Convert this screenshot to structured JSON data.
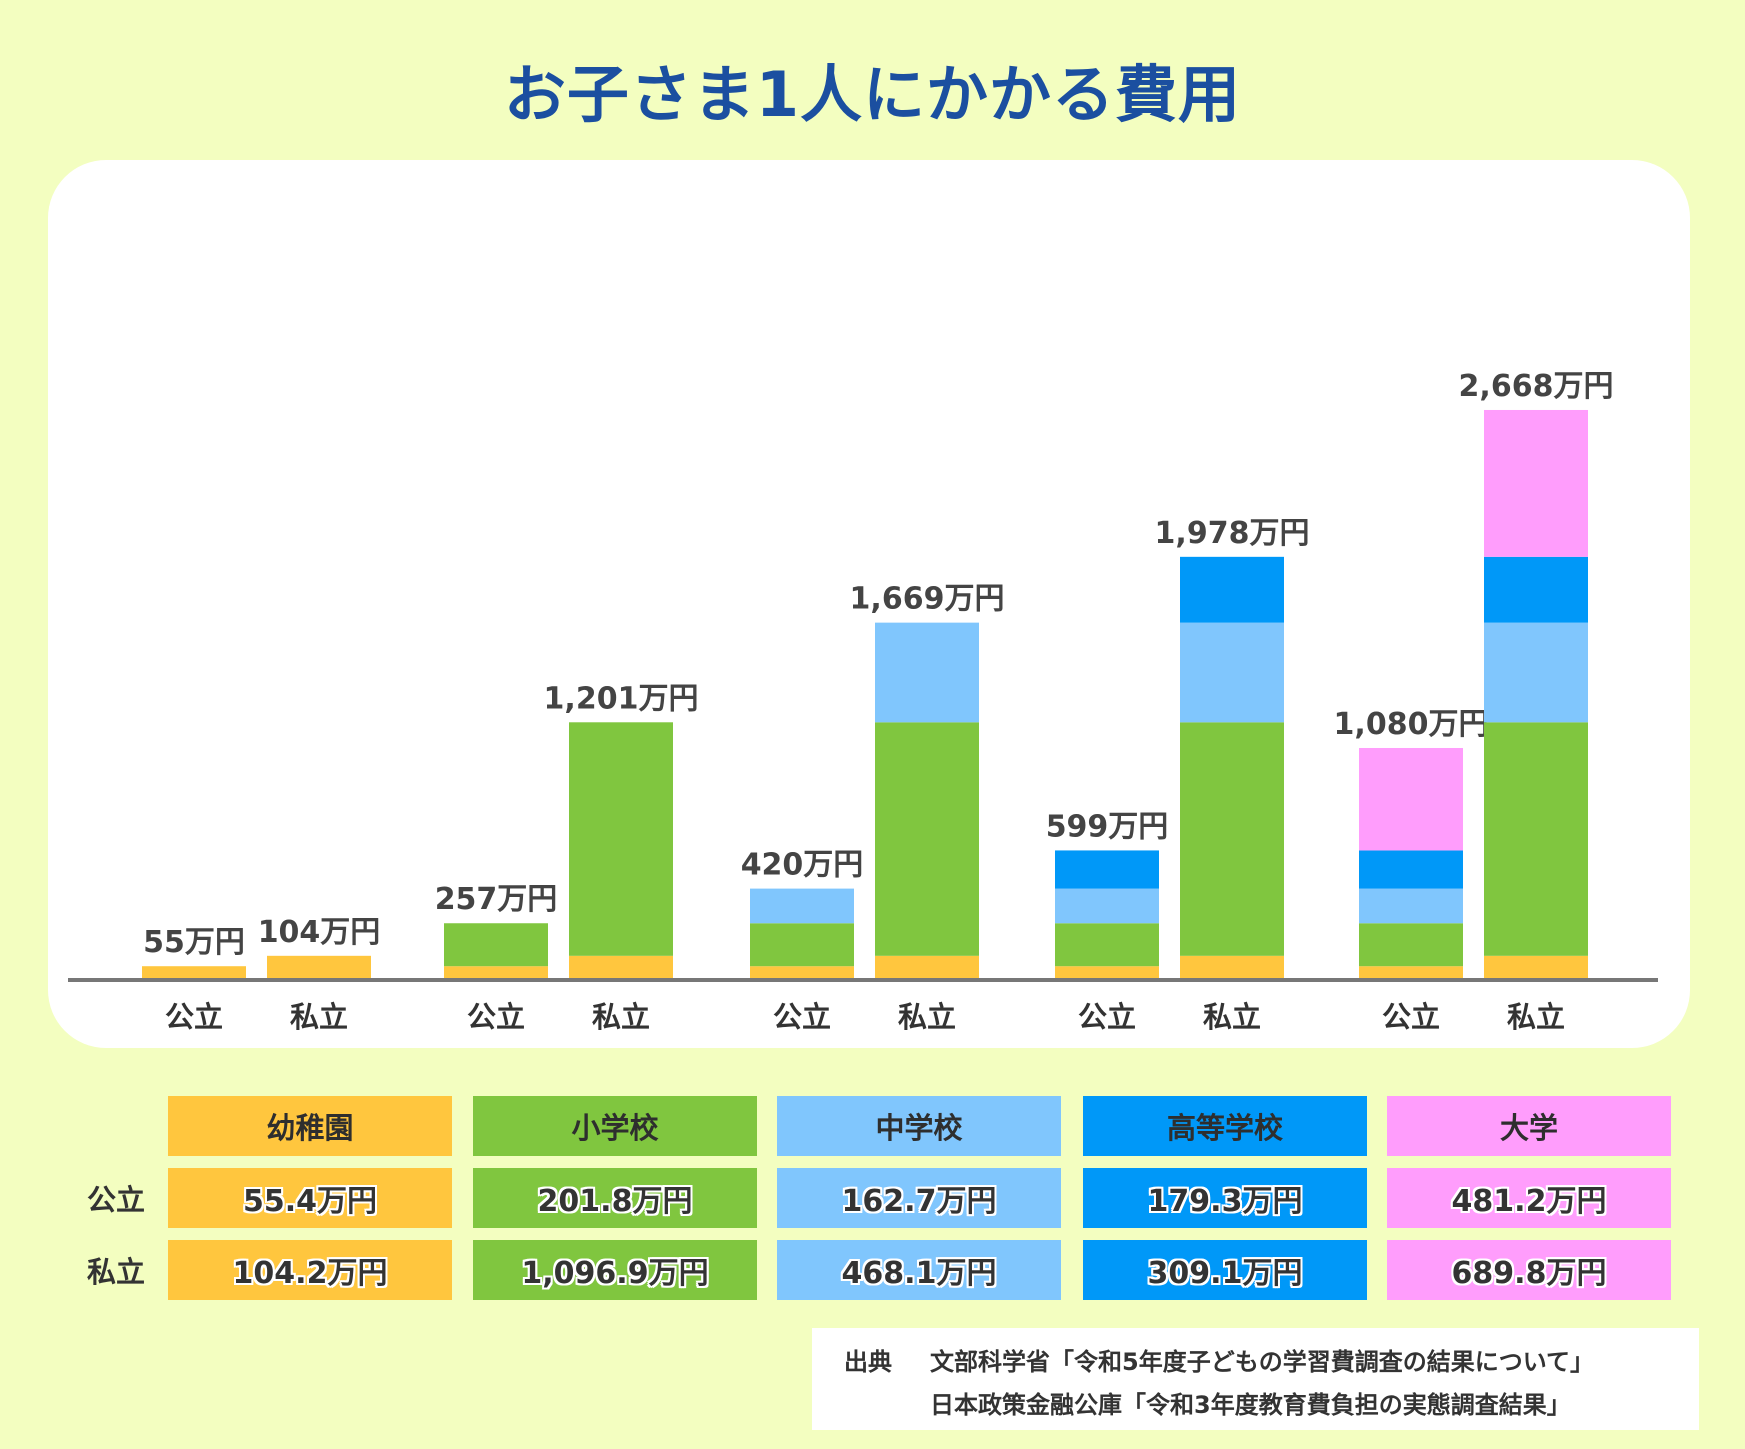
{
  "title": "お子さま1人にかかる費用",
  "colors": {
    "幼稚園": "#ffc63e",
    "小学校": "#80c63f",
    "中学校": "#80c6fd",
    "高等学校": "#0098f8",
    "大学": "#ff9dfc",
    "axis": "#777777"
  },
  "chart_data": {
    "type": "bar",
    "stacked": true,
    "unit": "万円",
    "categories": [
      "幼稚園",
      "小学校",
      "中学校",
      "高等学校",
      "大学"
    ],
    "bar_labels": [
      "公立",
      "私立",
      "公立",
      "私立",
      "公立",
      "私立",
      "公立",
      "私立",
      "公立",
      "私立"
    ],
    "stages": [
      "幼稚園",
      "小学校",
      "中学校",
      "高等学校",
      "大学"
    ],
    "bars": [
      {
        "group": 0,
        "type": "公立",
        "segments": [
          55.4
        ],
        "total_label": "55万円"
      },
      {
        "group": 0,
        "type": "私立",
        "segments": [
          104.2
        ],
        "total_label": "104万円"
      },
      {
        "group": 1,
        "type": "公立",
        "segments": [
          55.4,
          201.8
        ],
        "total_label": "257万円"
      },
      {
        "group": 1,
        "type": "私立",
        "segments": [
          104.2,
          1096.9
        ],
        "total_label": "1,201万円"
      },
      {
        "group": 2,
        "type": "公立",
        "segments": [
          55.4,
          201.8,
          162.7
        ],
        "total_label": "420万円"
      },
      {
        "group": 2,
        "type": "私立",
        "segments": [
          104.2,
          1096.9,
          468.1
        ],
        "total_label": "1,669万円"
      },
      {
        "group": 3,
        "type": "公立",
        "segments": [
          55.4,
          201.8,
          162.7,
          179.3
        ],
        "total_label": "599万円"
      },
      {
        "group": 3,
        "type": "私立",
        "segments": [
          104.2,
          1096.9,
          468.1,
          309.1
        ],
        "total_label": "1,978万円"
      },
      {
        "group": 4,
        "type": "公立",
        "segments": [
          55.4,
          201.8,
          162.7,
          179.3,
          481.2
        ],
        "total_label": "1,080万円"
      },
      {
        "group": 4,
        "type": "私立",
        "segments": [
          104.2,
          1096.9,
          468.1,
          309.1,
          689.8
        ],
        "total_label": "2,668万円"
      }
    ],
    "ylim": [
      0,
      2668
    ],
    "grid": false,
    "legend": "table below chart"
  },
  "breakdown_table": {
    "headers": [
      "幼稚園",
      "小学校",
      "中学校",
      "高等学校",
      "大学"
    ],
    "rows": [
      {
        "label": "公立",
        "values": [
          "55.4万円",
          "201.8万円",
          "162.7万円",
          "179.3万円",
          "481.2万円"
        ]
      },
      {
        "label": "私立",
        "values": [
          "104.2万円",
          "1,096.9万円",
          "468.1万円",
          "309.1万円",
          "689.8万円"
        ]
      }
    ]
  },
  "source": {
    "label": "出典",
    "line1": "文部科学省「令和5年度子どもの学習費調査の結果について」",
    "line2": "日本政策金融公庫「令和3年度教育費負担の実態調査結果」"
  }
}
